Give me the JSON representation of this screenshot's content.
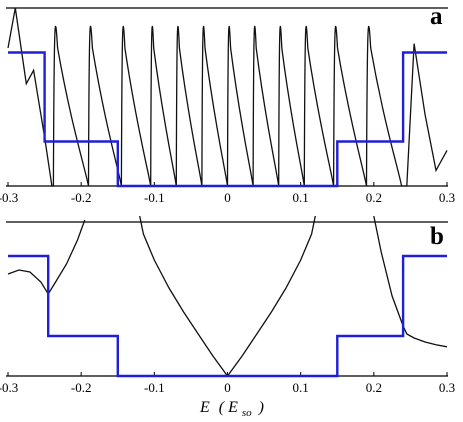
{
  "chart_data": [
    {
      "panel": "a",
      "type": "line",
      "xlim": [
        -0.3,
        0.3
      ],
      "ticks": [
        "-0.3",
        "-0.2",
        "-0.1",
        "0",
        "0.1",
        "0.2",
        "0.3"
      ],
      "tick_values": [
        -0.3,
        -0.2,
        -0.1,
        0,
        0.1,
        0.2,
        0.3
      ],
      "grid": false,
      "series": [
        {
          "style": "step",
          "color": "#1f1fd6",
          "x": [
            -0.3,
            -0.25,
            -0.25,
            -0.15,
            -0.15,
            0.15,
            0.15,
            0.24,
            0.24,
            0.3
          ],
          "y": [
            3,
            3,
            1,
            1,
            0,
            0,
            1,
            1,
            3,
            3
          ]
        },
        {
          "style": "oscillation",
          "color": "#111111",
          "x": [
            -0.3,
            -0.29,
            -0.275,
            -0.265,
            -0.25,
            -0.24,
            0.245,
            0.255,
            0.27,
            0.285,
            0.3
          ],
          "y": [
            3.1,
            4,
            2.3,
            2.6,
            1.1,
            0,
            0,
            3.2,
            1.6,
            0.35,
            0.8
          ],
          "zeros": [
            -0.238,
            -0.19,
            -0.145,
            -0.105,
            -0.07,
            -0.035,
            0,
            0.035,
            0.07,
            0.105,
            0.145,
            0.19,
            0.238
          ]
        }
      ]
    },
    {
      "panel": "b",
      "type": "line",
      "xlim": [
        -0.3,
        0.3
      ],
      "ticks": [
        "-0.3",
        "-0.2",
        "-0.1",
        "0",
        "0.1",
        "0.2",
        "0.3"
      ],
      "tick_values": [
        -0.3,
        -0.2,
        -0.1,
        0,
        0.1,
        0.2,
        0.3
      ],
      "grid": false,
      "xlabel_main": "E",
      "xlabel_unit": "( E",
      "xlabel_sub": "so",
      "xlabel_end": ")",
      "series": [
        {
          "style": "step",
          "color": "#1f1fd6",
          "x": [
            -0.3,
            -0.245,
            -0.245,
            -0.15,
            -0.15,
            0.15,
            0.15,
            0.24,
            0.24,
            0.3
          ],
          "y": [
            3,
            3,
            1,
            1,
            0,
            0,
            1,
            1,
            3,
            3
          ]
        },
        {
          "style": "line",
          "color": "#111111",
          "x": [
            -0.3,
            -0.285,
            -0.27,
            -0.255,
            -0.245,
            -0.235,
            -0.22,
            -0.205,
            -0.195
          ],
          "y": [
            2.55,
            2.65,
            2.6,
            2.35,
            2.05,
            2.35,
            2.8,
            3.4,
            3.9
          ]
        },
        {
          "style": "line",
          "color": "#111111",
          "x": [
            -0.12,
            -0.115,
            -0.1,
            -0.08,
            -0.06,
            -0.04,
            -0.02,
            0,
            0.02,
            0.04,
            0.06,
            0.08,
            0.1,
            0.115,
            0.12
          ],
          "y": [
            4,
            3.55,
            2.9,
            2.2,
            1.6,
            1.05,
            0.5,
            0,
            0.5,
            1.05,
            1.6,
            2.2,
            2.9,
            3.55,
            4
          ]
        },
        {
          "style": "line",
          "color": "#111111",
          "x": [
            0.2,
            0.21,
            0.225,
            0.24,
            0.245,
            0.255,
            0.27,
            0.285,
            0.3
          ],
          "y": [
            4,
            3.1,
            2.0,
            1.25,
            1.05,
            0.95,
            0.85,
            0.78,
            0.73
          ]
        }
      ]
    }
  ],
  "panel_labels": {
    "a": "a",
    "b": "b"
  }
}
